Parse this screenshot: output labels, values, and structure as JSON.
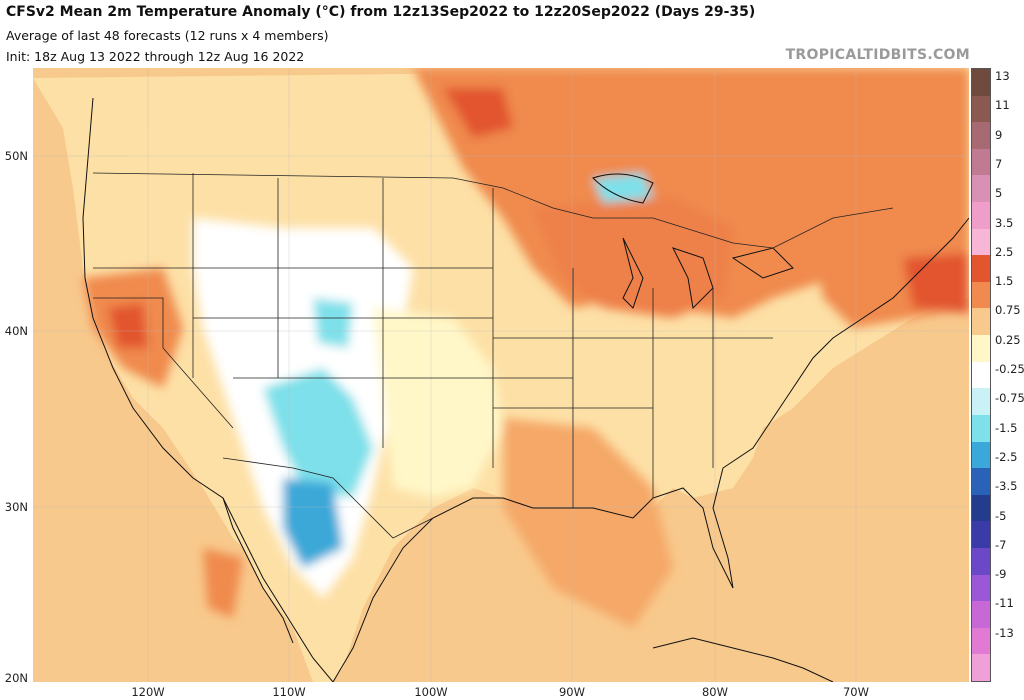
{
  "header": {
    "title": "CFSv2 Mean 2m Temperature Anomaly (°C) from 12z13Sep2022 to 12z20Sep2022 (Days 29-35)",
    "subtitle": "Average of last 48 forecasts (12 runs x 4 members)",
    "init": "Init: 18z Aug 13 2022 through 12z Aug 16 2022",
    "brand": "TROPICALTIDBITS.COM"
  },
  "map": {
    "lat_labels": [
      "50N",
      "40N",
      "30N",
      "20N"
    ],
    "lon_labels": [
      "120W",
      "110W",
      "100W",
      "90W",
      "80W",
      "70W"
    ],
    "ocean_color": "#f8c98c"
  },
  "colorbar": {
    "labels": [
      "13",
      "11",
      "9",
      "7",
      "5",
      "3.5",
      "2.5",
      "1.5",
      "0.75",
      "0.25",
      "-0.25",
      "-0.75",
      "-1.5",
      "-2.5",
      "-3.5",
      "-5",
      "-7",
      "-9",
      "-11",
      "-13"
    ],
    "colors": [
      "#6e4b3e",
      "#8a5a52",
      "#a86a72",
      "#c07a92",
      "#d890b4",
      "#ee9ec8",
      "#f7b6d6",
      "#e2552e",
      "#f08a4e",
      "#f8c98c",
      "#fff7c8",
      "#ffffff",
      "#c8f2f6",
      "#7ee0ea",
      "#3aa8d8",
      "#2a62b8",
      "#233c8e",
      "#3a3aa8",
      "#6a48c8",
      "#9a58d8",
      "#c868d6",
      "#e07ad2",
      "#f0a0d8"
    ]
  }
}
